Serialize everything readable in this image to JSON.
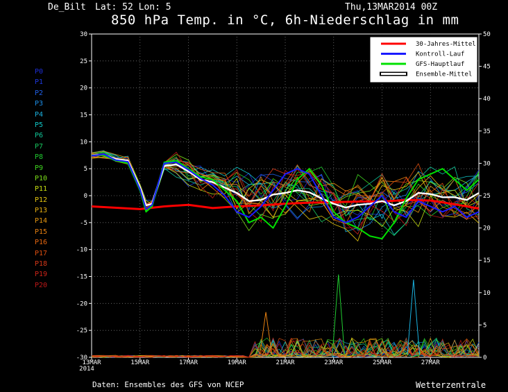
{
  "header": {
    "location": "De_Bilt",
    "coords": "Lat: 52 Lon: 5",
    "run": "Thu,13MAR2014 00Z",
    "title": "850 hPa Temp. in °C, 6h-Niederschlag in mm"
  },
  "members": [
    {
      "label": "P0",
      "color": "#1e2fd8"
    },
    {
      "label": "P1",
      "color": "#1e3ae0"
    },
    {
      "label": "P2",
      "color": "#2060e8"
    },
    {
      "label": "P3",
      "color": "#1c8ee8"
    },
    {
      "label": "P4",
      "color": "#1ab2e0"
    },
    {
      "label": "P5",
      "color": "#10c8c8"
    },
    {
      "label": "P6",
      "color": "#10c89a"
    },
    {
      "label": "P7",
      "color": "#18c860"
    },
    {
      "label": "P8",
      "color": "#20cc30"
    },
    {
      "label": "P9",
      "color": "#40d820"
    },
    {
      "label": "P10",
      "color": "#7ce018"
    },
    {
      "label": "P11",
      "color": "#c8e010"
    },
    {
      "label": "P12",
      "color": "#e8c810"
    },
    {
      "label": "P13",
      "color": "#e8b010"
    },
    {
      "label": "P14",
      "color": "#e89810"
    },
    {
      "label": "P15",
      "color": "#e88010"
    },
    {
      "label": "P16",
      "color": "#e86810"
    },
    {
      "label": "P17",
      "color": "#e05010"
    },
    {
      "label": "P18",
      "color": "#d83818"
    },
    {
      "label": "P19",
      "color": "#d02418"
    },
    {
      "label": "P20",
      "color": "#c01818"
    }
  ],
  "footer": {
    "source": "Daten: Ensembles des GFS von NCEP",
    "brand": "Wetterzentrale"
  },
  "chart_data": {
    "type": "line",
    "title": "850 hPa Temp. in °C, 6h-Niederschlag in mm",
    "x_labels": [
      "13MAR 2014",
      "15MAR",
      "17MAR",
      "19MAR",
      "21MAR",
      "23MAR",
      "25MAR",
      "27MAR"
    ],
    "x_range_days": [
      0,
      16
    ],
    "ylim_left": [
      -30,
      30
    ],
    "yticks_left": [
      30,
      25,
      20,
      15,
      10,
      5,
      0,
      -5,
      -10,
      -15,
      -20,
      -25,
      -30
    ],
    "ylim_right": [
      0,
      50
    ],
    "yticks_right": [
      50,
      45,
      40,
      35,
      30,
      25,
      20,
      15,
      10,
      5,
      0
    ],
    "grid": true,
    "legend_position": "top-right",
    "legend": [
      {
        "name": "30-Jahres-Mittel",
        "color": "#ff0000"
      },
      {
        "name": "Kontroll-Lauf",
        "color": "#1a1aff"
      },
      {
        "name": "GFS-Hauptlauf",
        "color": "#00e000"
      },
      {
        "name": "Ensemble-Mittel",
        "color": "#ffffff"
      }
    ],
    "series": [
      {
        "name": "30-Jahres-Mittel",
        "axis": "left",
        "color": "#ff0000",
        "x": [
          0,
          2,
          3,
          4,
          5,
          6,
          7,
          8,
          9,
          10,
          11,
          12,
          13,
          14,
          15,
          16
        ],
        "y": [
          -2,
          -2.5,
          -2,
          -1.7,
          -2.3,
          -2,
          -1.8,
          -1.5,
          -1.3,
          -1.2,
          -1.1,
          -1.1,
          -0.8,
          -0.9,
          -1.6,
          -2.4
        ]
      },
      {
        "name": "Ensemble-Mittel",
        "axis": "left",
        "color": "#ffffff",
        "x": [
          0,
          0.5,
          1,
          1.5,
          2,
          2.25,
          2.5,
          3,
          3.5,
          4,
          4.5,
          5,
          5.5,
          6,
          6.5,
          7,
          7.5,
          8,
          8.5,
          9,
          9.5,
          10,
          10.5,
          11,
          11.5,
          12,
          12.5,
          13,
          13.5,
          14,
          14.5,
          15,
          15.5,
          16
        ],
        "y": [
          7.5,
          7.6,
          6.8,
          6.5,
          1.5,
          -1.8,
          -1.5,
          5.5,
          5.8,
          4.5,
          3,
          2.5,
          1.5,
          0.5,
          -1,
          -0.8,
          0.2,
          0.5,
          1,
          0.6,
          -0.5,
          -1.5,
          -2.2,
          -1.7,
          -1.5,
          -1,
          -1.8,
          -1,
          0.5,
          0.3,
          -0.3,
          -0.3,
          -0.8,
          0.5
        ]
      },
      {
        "name": "GFS-Hauptlauf",
        "axis": "left",
        "color": "#00e000",
        "x": [
          0,
          0.5,
          1,
          1.5,
          2,
          2.25,
          2.5,
          3,
          3.5,
          4,
          4.5,
          5,
          5.5,
          6,
          6.5,
          7,
          7.5,
          8,
          8.5,
          9,
          9.5,
          10,
          10.5,
          11,
          11.5,
          12,
          12.5,
          13,
          13.5,
          14,
          14.5,
          15,
          15.5,
          16
        ],
        "y": [
          7.5,
          7.5,
          6.5,
          6,
          1,
          -3,
          -2,
          6.2,
          6.5,
          5,
          3.5,
          3,
          1,
          -1,
          -5,
          -4,
          -6,
          -2,
          3,
          5,
          2,
          -3,
          -5,
          -6,
          -7.5,
          -8,
          -5,
          -0.5,
          3,
          4,
          5,
          3,
          1,
          3
        ]
      },
      {
        "name": "Kontroll-Lauf",
        "axis": "left",
        "color": "#1a1aff",
        "x": [
          0,
          0.5,
          1,
          1.5,
          2,
          2.25,
          2.5,
          3,
          3.5,
          4,
          4.5,
          5,
          5.5,
          6,
          6.5,
          7,
          7.5,
          8,
          8.5,
          9,
          9.5,
          10,
          10.5,
          11,
          11.5,
          12,
          12.5,
          13,
          13.5,
          14,
          14.5,
          15,
          15.5,
          16
        ],
        "y": [
          7.4,
          7.7,
          6.6,
          6.3,
          1.2,
          -2.5,
          -1.7,
          6,
          6.2,
          4.8,
          3.2,
          2,
          0,
          -3,
          -4,
          -2,
          1,
          4,
          5,
          4,
          0,
          -4,
          -5,
          -4,
          -2,
          0,
          -3,
          -4,
          -1,
          -2,
          -3,
          -2,
          -4,
          -3
        ]
      }
    ],
    "precip_peaks_mm": [
      {
        "x": 7.2,
        "y": 7
      },
      {
        "x": 10.2,
        "y": 12.8
      },
      {
        "x": 13.3,
        "y": 12
      }
    ]
  }
}
